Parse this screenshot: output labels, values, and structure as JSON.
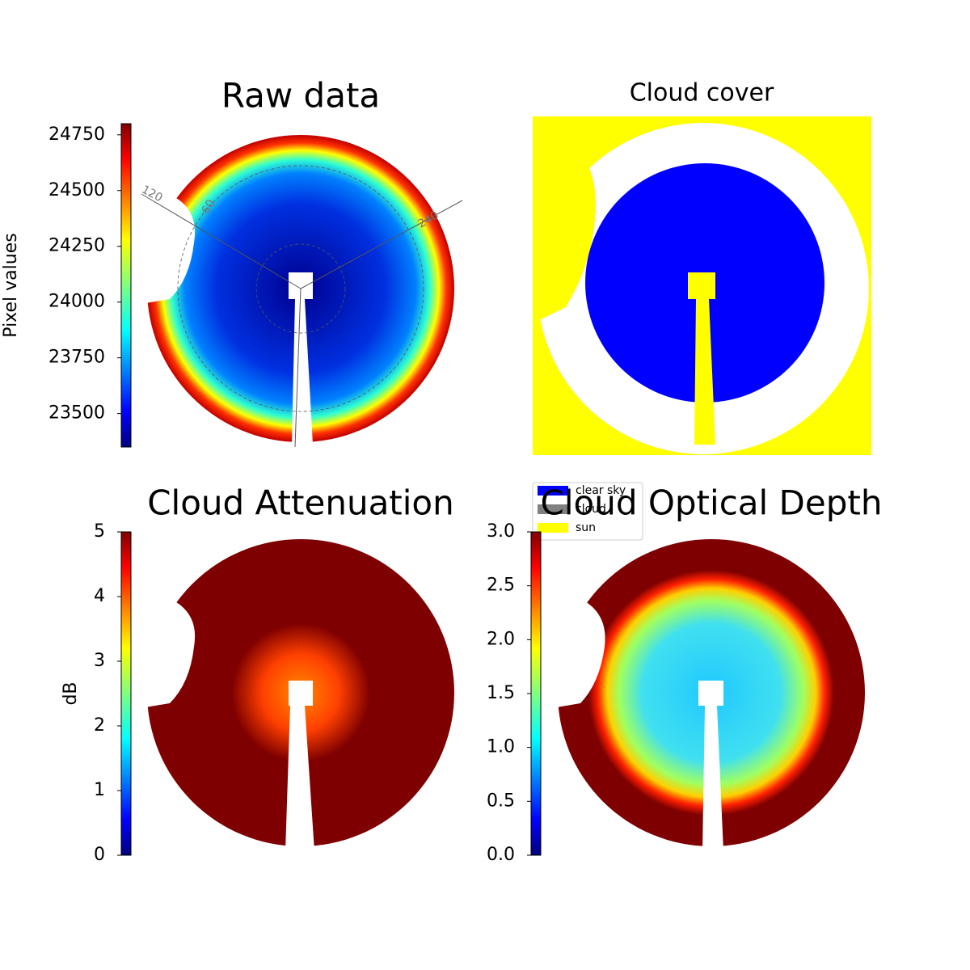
{
  "chart_data": [
    {
      "type": "image",
      "title": "Raw data",
      "colorbar": {
        "label": "Pixel values",
        "lim": [
          23350,
          24800
        ],
        "ticks": [
          23500,
          23750,
          24000,
          24250,
          24500,
          24750
        ]
      },
      "annotations": [
        "120",
        "60",
        "240"
      ]
    },
    {
      "type": "image",
      "title": "Cloud cover",
      "legend": [
        {
          "name": "clear sky",
          "color": "#0000ff"
        },
        {
          "name": "cloud",
          "color": "#808080"
        },
        {
          "name": "sun",
          "color": "#ffff00"
        }
      ]
    },
    {
      "type": "image",
      "title": "Cloud Attenuation",
      "colorbar": {
        "label": "dB",
        "lim": [
          0,
          5
        ],
        "ticks": [
          0,
          1,
          2,
          3,
          4,
          5
        ]
      }
    },
    {
      "type": "image",
      "title": "Cloud Optical Depth",
      "colorbar": {
        "lim": [
          0,
          3
        ],
        "ticks": [
          {
            "value": 0,
            "label": "0.0"
          },
          0.5,
          {
            "value": 1,
            "label": "1.0"
          },
          1.5,
          {
            "value": 2,
            "label": "2.0"
          },
          2.5,
          {
            "value": 3,
            "label": "3.0"
          }
        ]
      }
    }
  ]
}
